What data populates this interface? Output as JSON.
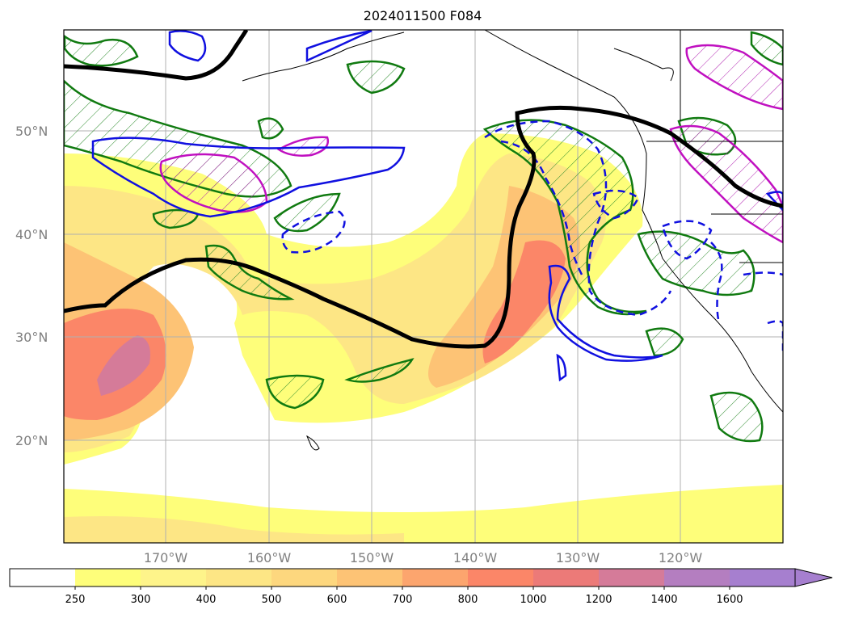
{
  "title": "2024011500 F084",
  "map": {
    "lat_labels": [
      "50°N",
      "40°N",
      "30°N",
      "20°N"
    ],
    "lon_labels": [
      "170°W",
      "160°W",
      "150°W",
      "140°W",
      "130°W",
      "120°W"
    ]
  },
  "colorbar": {
    "tick_labels": [
      "250",
      "300",
      "400",
      "500",
      "600",
      "700",
      "800",
      "1000",
      "1200",
      "1400",
      "1600"
    ],
    "colors": [
      "#ffffff",
      "#fefe7a",
      "#fef48a",
      "#fde685",
      "#fdd77e",
      "#fdc375",
      "#fca56e",
      "#fb8668",
      "#ec7a78",
      "#d57b99",
      "#b47ec0",
      "#a67fcf"
    ],
    "extend": "max"
  },
  "chart_data": {
    "type": "heatmap",
    "title": "2024011500 F084",
    "colorbar_levels": [
      250,
      300,
      400,
      500,
      600,
      700,
      800,
      1000,
      1200,
      1400,
      1600
    ],
    "extent": {
      "lon": [
        -180,
        -110
      ],
      "lat": [
        10,
        60
      ]
    },
    "gridlines": true,
    "overlays": [
      "black geopotential contour",
      "green hatched contours",
      "blue solid and dashed contours",
      "magenta hatched contours",
      "coastlines"
    ]
  }
}
